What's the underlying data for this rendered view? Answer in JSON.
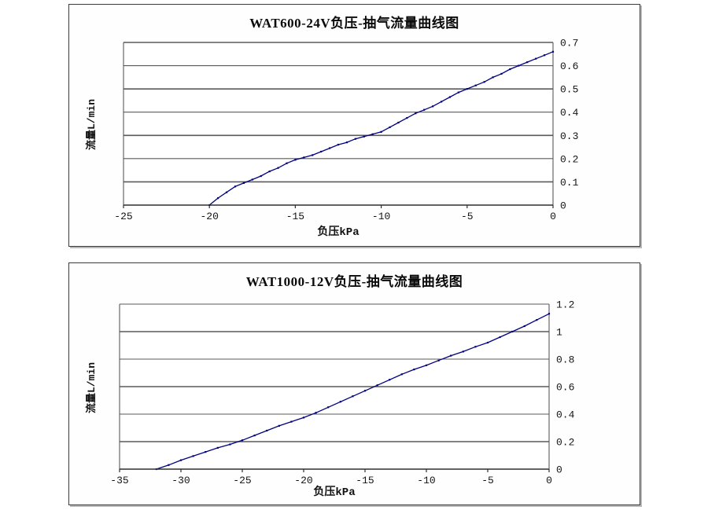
{
  "chart_data": [
    {
      "type": "line",
      "title": "WAT600-24V负压-抽气流量曲线图",
      "xlabel": "负压kPa",
      "ylabel": "流量L/min",
      "xlim": [
        -25,
        0
      ],
      "ylim": [
        0,
        0.7
      ],
      "x_tick_values": [
        -25,
        -20,
        -15,
        -10,
        -5,
        0
      ],
      "x_tick_labels": [
        "-25",
        "-20",
        "-15",
        "-10",
        "-5",
        "0"
      ],
      "y_tick_values": [
        0,
        0.1,
        0.2,
        0.3,
        0.4,
        0.5,
        0.6,
        0.7
      ],
      "y_tick_labels": [
        "0",
        "0.1",
        "0.2",
        "0.3",
        "0.4",
        "0.5",
        "0.6",
        "0.7"
      ],
      "y_axis_side": "right",
      "grid": "horizontal",
      "legend": "none",
      "line_color": "#000080",
      "grid_color": "#5a5a5a",
      "axis_color": "#2e2e2e",
      "series": [
        {
          "name": "抽气流量",
          "x": [
            -20,
            -19.5,
            -19,
            -18.5,
            -18,
            -17.5,
            -17,
            -16.5,
            -16,
            -15.5,
            -15,
            -14.5,
            -14,
            -13.5,
            -13,
            -12.5,
            -12,
            -11.5,
            -11,
            -10.5,
            -10,
            -9.5,
            -9,
            -8.5,
            -8,
            -7.5,
            -7,
            -6.5,
            -6,
            -5.5,
            -5,
            -4.5,
            -4,
            -3.5,
            -3,
            -2.5,
            -2,
            -1.5,
            -1,
            -0.5,
            0
          ],
          "y": [
            0,
            0.03,
            0.055,
            0.08,
            0.095,
            0.11,
            0.125,
            0.145,
            0.16,
            0.18,
            0.195,
            0.205,
            0.215,
            0.23,
            0.245,
            0.26,
            0.27,
            0.285,
            0.295,
            0.305,
            0.315,
            0.335,
            0.355,
            0.375,
            0.395,
            0.41,
            0.425,
            0.445,
            0.465,
            0.485,
            0.5,
            0.515,
            0.53,
            0.55,
            0.565,
            0.585,
            0.6,
            0.615,
            0.63,
            0.645,
            0.66
          ]
        }
      ]
    },
    {
      "type": "line",
      "title": "WAT1000-12V负压-抽气流量曲线图",
      "xlabel": "负压kPa",
      "ylabel": "流量L/min",
      "xlim": [
        -35,
        0
      ],
      "ylim": [
        0,
        1.2
      ],
      "x_tick_values": [
        -35,
        -30,
        -25,
        -20,
        -15,
        -10,
        -5,
        0
      ],
      "x_tick_labels": [
        "-35",
        "-30",
        "-25",
        "-20",
        "-15",
        "-10",
        "-5",
        "0"
      ],
      "y_tick_values": [
        0,
        0.2,
        0.4,
        0.6,
        0.8,
        1.0,
        1.2
      ],
      "y_tick_labels": [
        "0",
        "0.2",
        "0.4",
        "0.6",
        "0.8",
        "1",
        "1.2"
      ],
      "y_axis_side": "right",
      "grid": "horizontal",
      "legend": "none",
      "line_color": "#000080",
      "grid_color": "#5a5a5a",
      "axis_color": "#2e2e2e",
      "series": [
        {
          "name": "抽气流量",
          "x": [
            -32,
            -31,
            -30,
            -29,
            -28,
            -27,
            -26,
            -25,
            -24,
            -23,
            -22,
            -21,
            -20,
            -19,
            -18,
            -17,
            -16,
            -15,
            -14,
            -13,
            -12,
            -11,
            -10,
            -9,
            -8,
            -7,
            -6,
            -5,
            -4,
            -3,
            -2,
            -1,
            0
          ],
          "y": [
            0,
            0.03,
            0.065,
            0.095,
            0.125,
            0.155,
            0.18,
            0.21,
            0.245,
            0.28,
            0.315,
            0.345,
            0.375,
            0.41,
            0.45,
            0.49,
            0.53,
            0.57,
            0.61,
            0.65,
            0.69,
            0.725,
            0.755,
            0.79,
            0.825,
            0.855,
            0.89,
            0.92,
            0.96,
            1.0,
            1.04,
            1.085,
            1.13
          ]
        }
      ]
    }
  ]
}
